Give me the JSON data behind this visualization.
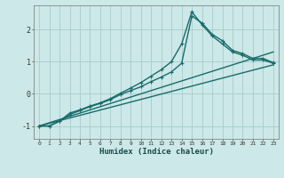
{
  "xlabel": "Humidex (Indice chaleur)",
  "bg_color": "#cce8e8",
  "grid_color": "#a8cccc",
  "line_color": "#1a6b6b",
  "xlim": [
    -0.5,
    23.5
  ],
  "ylim": [
    -1.4,
    2.75
  ],
  "yticks": [
    -1,
    0,
    1,
    2
  ],
  "xticks": [
    0,
    1,
    2,
    3,
    4,
    5,
    6,
    7,
    8,
    9,
    10,
    11,
    12,
    13,
    14,
    15,
    16,
    17,
    18,
    19,
    20,
    21,
    22,
    23
  ],
  "series": [
    {
      "x": [
        0,
        1,
        2,
        3,
        4,
        5,
        6,
        7,
        8,
        9,
        10,
        11,
        12,
        13,
        14,
        15,
        16,
        17,
        18,
        19,
        20,
        21,
        22,
        23
      ],
      "y": [
        -1.0,
        -1.0,
        -0.85,
        -0.6,
        -0.5,
        -0.38,
        -0.28,
        -0.15,
        0.02,
        0.18,
        0.35,
        0.55,
        0.75,
        1.0,
        1.55,
        2.55,
        2.15,
        1.8,
        1.55,
        1.3,
        1.2,
        1.05,
        1.05,
        0.95
      ],
      "has_marker": true,
      "markersize": 2.8,
      "linewidth": 1.0
    },
    {
      "x": [
        0,
        1,
        2,
        3,
        4,
        5,
        6,
        7,
        8,
        9,
        10,
        11,
        12,
        13,
        14,
        15,
        16,
        17,
        18,
        19,
        20,
        21,
        22,
        23
      ],
      "y": [
        -1.0,
        -1.0,
        -0.85,
        -0.65,
        -0.52,
        -0.4,
        -0.3,
        -0.18,
        -0.02,
        0.1,
        0.22,
        0.38,
        0.52,
        0.68,
        0.95,
        2.42,
        2.2,
        1.85,
        1.65,
        1.35,
        1.25,
        1.1,
        1.1,
        0.97
      ],
      "has_marker": true,
      "markersize": 2.8,
      "linewidth": 1.0
    },
    {
      "x": [
        0,
        23
      ],
      "y": [
        -1.0,
        1.3
      ],
      "has_marker": false,
      "linewidth": 1.0
    },
    {
      "x": [
        0,
        23
      ],
      "y": [
        -1.0,
        0.9
      ],
      "has_marker": false,
      "linewidth": 1.0
    }
  ]
}
